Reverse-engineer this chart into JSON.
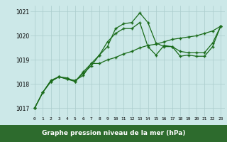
{
  "x": [
    0,
    1,
    2,
    3,
    4,
    5,
    6,
    7,
    8,
    9,
    10,
    11,
    12,
    13,
    14,
    15,
    16,
    17,
    18,
    19,
    20,
    21,
    22,
    23
  ],
  "line1": [
    1017.0,
    1017.65,
    1018.1,
    1018.3,
    1018.2,
    1018.1,
    1018.45,
    1018.75,
    1019.2,
    1019.55,
    1020.3,
    1020.5,
    1020.55,
    1020.95,
    1020.55,
    1019.7,
    1019.55,
    1019.55,
    1019.35,
    1019.3,
    1019.3,
    1019.3,
    1019.7,
    1020.4
  ],
  "line2": [
    1017.0,
    1017.65,
    1018.15,
    1018.3,
    1018.2,
    1018.15,
    1018.35,
    1018.85,
    1019.2,
    1019.75,
    1020.1,
    1020.3,
    1020.3,
    1020.55,
    1019.55,
    1019.2,
    1019.6,
    1019.55,
    1019.15,
    1019.2,
    1019.15,
    1019.15,
    1019.55,
    1020.4
  ],
  "line3": [
    1017.0,
    1017.65,
    1018.1,
    1018.3,
    1018.25,
    1018.1,
    1018.5,
    1018.85,
    1018.85,
    1019.0,
    1019.1,
    1019.25,
    1019.35,
    1019.5,
    1019.6,
    1019.65,
    1019.75,
    1019.85,
    1019.9,
    1019.95,
    1020.0,
    1020.1,
    1020.2,
    1020.4
  ],
  "line_color": "#1a6b1a",
  "bg_color": "#cce8e8",
  "grid_color": "#aacccc",
  "xlabel": "Graphe pression niveau de la mer (hPa)",
  "ylabel_ticks": [
    1017,
    1018,
    1019,
    1020,
    1021
  ],
  "xlim": [
    -0.5,
    23.5
  ],
  "ylim": [
    1016.65,
    1021.25
  ],
  "xlabel_bg": "#2d6b2d",
  "xlabel_color": "#ffffff",
  "marker": "+"
}
